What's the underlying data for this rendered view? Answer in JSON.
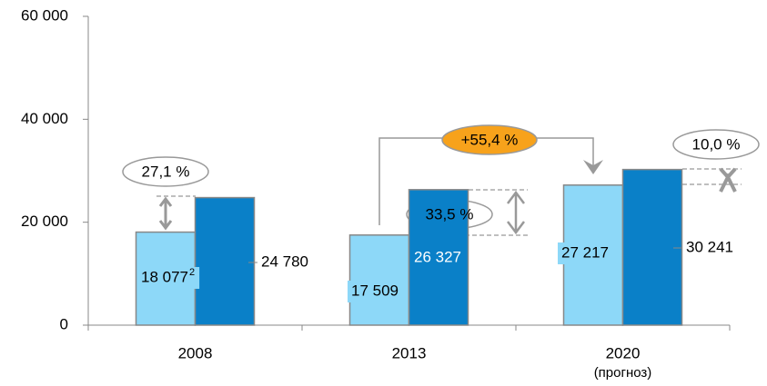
{
  "chart_data": {
    "type": "bar",
    "categories": [
      "2008",
      "2013",
      "2020"
    ],
    "category_notes": [
      null,
      null,
      "(прогноз)"
    ],
    "series": [
      {
        "color": "#8dd8f8",
        "values": [
          18077,
          17509,
          27217
        ],
        "value_labels": [
          "18 077",
          "17 509",
          "27 217"
        ],
        "value_footnotes": [
          "2",
          null,
          null
        ]
      },
      {
        "color": "#0a80c8",
        "values": [
          24780,
          26327,
          30241
        ],
        "value_labels": [
          "24 780",
          "26 327",
          "30 241"
        ]
      }
    ],
    "ylim": [
      0,
      60000
    ],
    "yticks": [
      0,
      {
        "value": 20000,
        "label": "20 000"
      },
      {
        "value": 40000,
        "label": "40 000"
      },
      {
        "value": 60000,
        "label": "60 000"
      }
    ],
    "grid": false,
    "annotations": [
      "27,1 %",
      "33,5 %",
      "+55,4 %",
      "10,0 %"
    ]
  }
}
